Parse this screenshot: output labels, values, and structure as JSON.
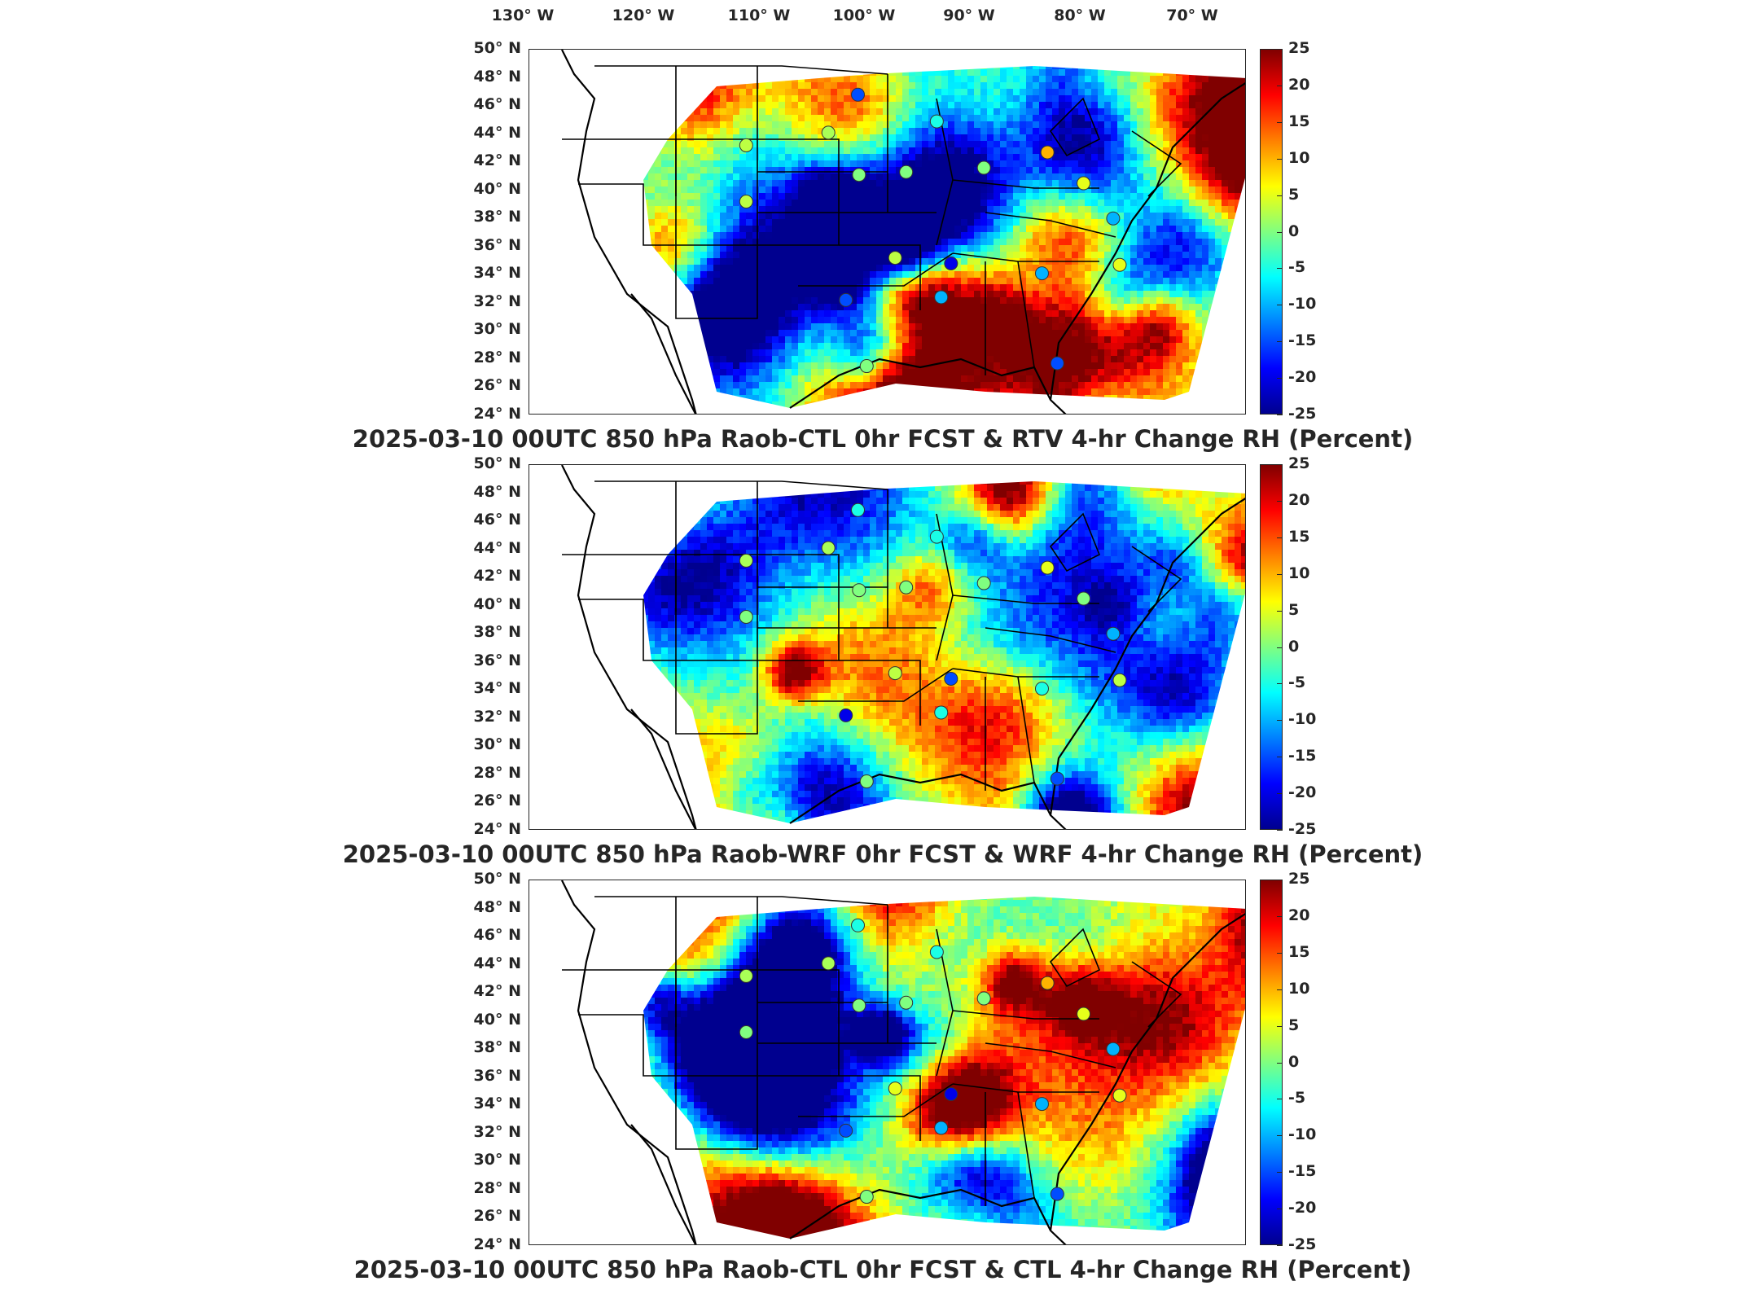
{
  "lon_labels": [
    "130° W",
    "120° W",
    "110° W",
    "100° W",
    "90° W",
    "80° W",
    "70° W"
  ],
  "lat_labels": [
    "50° N",
    "48° N",
    "46° N",
    "44° N",
    "42° N",
    "40° N",
    "38° N",
    "36° N",
    "34° N",
    "32° N",
    "30° N",
    "28° N",
    "26° N",
    "24° N"
  ],
  "colorbar": {
    "min": -25,
    "max": 25,
    "ticks": [
      "25",
      "20",
      "15",
      "10",
      "5",
      "0",
      "-5",
      "-10",
      "-15",
      "-20",
      "-25"
    ],
    "colormap": [
      "#00008f",
      "#0000ff",
      "#0080ff",
      "#00ffff",
      "#80ff80",
      "#ffff00",
      "#ff8000",
      "#ff0000",
      "#800000"
    ]
  },
  "panels": [
    {
      "title": "2025-03-10 00UTC 850 hPa Raob-CTL 0hr FCST & RTV 4-hr Change RH (Percent)"
    },
    {
      "title": "2025-03-10 00UTC 850 hPa Raob-WRF 0hr FCST & WRF 4-hr Change RH (Percent)"
    },
    {
      "title": "2025-03-10 00UTC 850 hPa Raob-CTL 0hr FCST & CTL 4-hr Change RH (Percent)"
    }
  ],
  "raob_stations": [
    {
      "lon": -100.8,
      "lat": 46.8,
      "values": [
        -15,
        -5,
        -5
      ]
    },
    {
      "lon": -111.0,
      "lat": 43.2,
      "values": [
        3,
        2,
        2
      ]
    },
    {
      "lon": -103.5,
      "lat": 44.1,
      "values": [
        2,
        2,
        2
      ]
    },
    {
      "lon": -93.6,
      "lat": 44.9,
      "values": [
        -5,
        -5,
        -5
      ]
    },
    {
      "lon": -100.7,
      "lat": 41.1,
      "values": [
        0,
        0,
        0
      ]
    },
    {
      "lon": -96.4,
      "lat": 41.3,
      "values": [
        0,
        0,
        0
      ]
    },
    {
      "lon": -89.3,
      "lat": 41.6,
      "values": [
        0,
        0,
        0
      ]
    },
    {
      "lon": -83.5,
      "lat": 42.7,
      "values": [
        10,
        5,
        10
      ]
    },
    {
      "lon": -80.2,
      "lat": 40.5,
      "values": [
        5,
        0,
        5
      ]
    },
    {
      "lon": -111.0,
      "lat": 39.2,
      "values": [
        3,
        0,
        0
      ]
    },
    {
      "lon": -97.4,
      "lat": 35.2,
      "values": [
        3,
        3,
        5
      ]
    },
    {
      "lon": -92.3,
      "lat": 34.8,
      "values": [
        -20,
        -15,
        -20
      ]
    },
    {
      "lon": -101.9,
      "lat": 32.2,
      "values": [
        -15,
        -20,
        -15
      ]
    },
    {
      "lon": -93.2,
      "lat": 32.4,
      "values": [
        -10,
        -5,
        -10
      ]
    },
    {
      "lon": -84.0,
      "lat": 34.1,
      "values": [
        -10,
        -5,
        -10
      ]
    },
    {
      "lon": -76.9,
      "lat": 34.7,
      "values": [
        5,
        3,
        5
      ]
    },
    {
      "lon": -77.5,
      "lat": 38.0,
      "values": [
        -10,
        -10,
        -10
      ]
    },
    {
      "lon": -100.0,
      "lat": 27.5,
      "values": [
        0,
        0,
        0
      ]
    },
    {
      "lon": -82.6,
      "lat": 27.7,
      "values": [
        -15,
        -15,
        -15
      ]
    }
  ]
}
